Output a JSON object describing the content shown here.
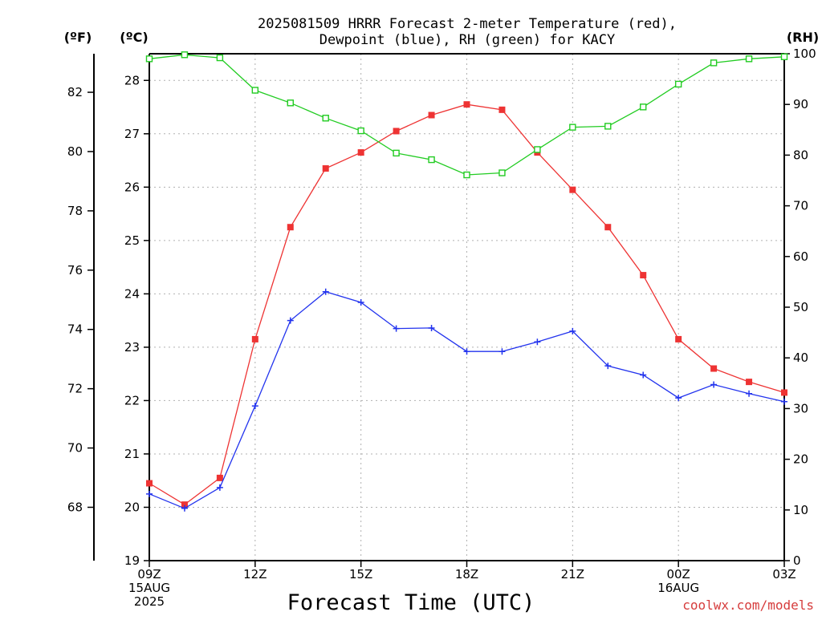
{
  "header": {
    "title_line1": "2025081509 HRRR Forecast 2-meter Temperature (red),",
    "title_line2": "Dewpoint (blue), RH (green) for KACY"
  },
  "units": {
    "fahrenheit": "(ºF)",
    "celsius": "(ºC)",
    "rh": "(RH)"
  },
  "credit": "coolwx.com/models",
  "chart_data": {
    "type": "line",
    "title": "2025081509 HRRR Forecast 2-meter Temperature (red), Dewpoint (blue), RH (green) for KACY",
    "xlabel": "Forecast Time (UTC)",
    "x": [
      "09Z",
      "10Z",
      "11Z",
      "12Z",
      "13Z",
      "14Z",
      "15Z",
      "16Z",
      "17Z",
      "18Z",
      "19Z",
      "20Z",
      "21Z",
      "22Z",
      "23Z",
      "00Z",
      "01Z",
      "02Z",
      "03Z"
    ],
    "x_ticks": [
      {
        "index": 0,
        "lines": [
          "09Z",
          "15AUG",
          "2025"
        ]
      },
      {
        "index": 3,
        "lines": [
          "12Z"
        ]
      },
      {
        "index": 6,
        "lines": [
          "15Z"
        ]
      },
      {
        "index": 9,
        "lines": [
          "18Z"
        ]
      },
      {
        "index": 12,
        "lines": [
          "21Z"
        ]
      },
      {
        "index": 15,
        "lines": [
          "00Z",
          "16AUG"
        ]
      },
      {
        "index": 18,
        "lines": [
          "03Z"
        ]
      }
    ],
    "y_celsius": {
      "ylabel": "(ºC)",
      "ylim": [
        19,
        28.5
      ],
      "ticks": [
        19,
        20,
        21,
        22,
        23,
        24,
        25,
        26,
        27,
        28
      ]
    },
    "y_fahrenheit": {
      "ylabel": "(ºF)",
      "ticks": [
        68,
        70,
        72,
        74,
        76,
        78,
        80,
        82
      ]
    },
    "y_rh": {
      "ylabel": "(RH)",
      "ylim": [
        0,
        100
      ],
      "ticks": [
        0,
        10,
        20,
        30,
        40,
        50,
        60,
        70,
        80,
        90,
        100
      ]
    },
    "grid": true,
    "series": [
      {
        "name": "Temperature",
        "axis": "celsius",
        "color": "#ee3333",
        "marker": "filled-square",
        "values": [
          20.45,
          20.05,
          20.55,
          23.15,
          25.25,
          26.35,
          26.65,
          27.05,
          27.35,
          27.55,
          27.45,
          26.65,
          25.95,
          25.25,
          24.35,
          23.15,
          22.6,
          22.35,
          22.15
        ]
      },
      {
        "name": "Dewpoint",
        "axis": "celsius",
        "color": "#2233ee",
        "marker": "plus",
        "values": [
          20.25,
          19.98,
          20.37,
          21.9,
          23.5,
          24.04,
          23.84,
          23.35,
          23.36,
          22.92,
          22.92,
          23.1,
          23.3,
          22.65,
          22.48,
          22.05,
          22.3,
          22.13,
          21.98
        ]
      },
      {
        "name": "RH",
        "axis": "rh",
        "color": "#22cc22",
        "marker": "open-square",
        "values": [
          99,
          99.8,
          99.2,
          92.8,
          90.3,
          87.3,
          84.8,
          80.4,
          79.1,
          76.1,
          76.5,
          81.1,
          85.5,
          85.7,
          89.5,
          94,
          98.2,
          99,
          99.4
        ]
      }
    ]
  }
}
